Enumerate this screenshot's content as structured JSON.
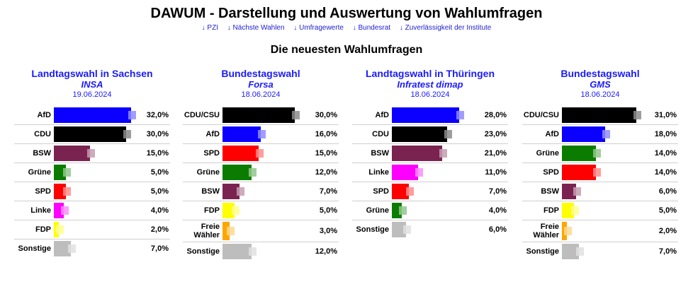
{
  "header": {
    "title": "DAWUM - Darstellung und Auswertung von Wahlumfragen",
    "nav": [
      "↓ PZI",
      "↓ Nächste Wahlen",
      "↓ Umfragewerte",
      "↓ Bundesrat",
      "↓ Zuverlässigkeit der Institute"
    ],
    "subtitle": "Die neuesten Wahlumfragen"
  },
  "colors": {
    "link": "#1a1aff",
    "parties": {
      "AfD": "#0b00ff",
      "CDU": "#000000",
      "CDU/CSU": "#000000",
      "BSW": "#7b2350",
      "Grüne": "#0a7d00",
      "SPD": "#ff0000",
      "Linke": "#ff00ff",
      "FDP": "#ffff00",
      "Freie Wähler": "#ffa500",
      "Sonstige": "#bdbdbd"
    }
  },
  "polls": [
    {
      "election": "Landtagswahl in Sachsen",
      "institute": "INSA",
      "date": "19.06.2024",
      "results": [
        {
          "party": "AfD",
          "value_text": "32,0%",
          "value": 32.0
        },
        {
          "party": "CDU",
          "value_text": "30,0%",
          "value": 30.0
        },
        {
          "party": "BSW",
          "value_text": "15,0%",
          "value": 15.0
        },
        {
          "party": "Grüne",
          "value_text": "5,0%",
          "value": 5.0
        },
        {
          "party": "SPD",
          "value_text": "5,0%",
          "value": 5.0
        },
        {
          "party": "Linke",
          "value_text": "4,0%",
          "value": 4.0
        },
        {
          "party": "FDP",
          "value_text": "2,0%",
          "value": 2.0
        },
        {
          "party": "Sonstige",
          "value_text": "7,0%",
          "value": 7.0
        }
      ]
    },
    {
      "election": "Bundestagswahl",
      "institute": "Forsa",
      "date": "18.06.2024",
      "results": [
        {
          "party": "CDU/CSU",
          "value_text": "30,0%",
          "value": 30.0
        },
        {
          "party": "AfD",
          "value_text": "16,0%",
          "value": 16.0
        },
        {
          "party": "SPD",
          "value_text": "15,0%",
          "value": 15.0
        },
        {
          "party": "Grüne",
          "value_text": "12,0%",
          "value": 12.0
        },
        {
          "party": "BSW",
          "value_text": "7,0%",
          "value": 7.0
        },
        {
          "party": "FDP",
          "value_text": "5,0%",
          "value": 5.0
        },
        {
          "party": "Freie Wähler",
          "value_text": "3,0%",
          "value": 3.0
        },
        {
          "party": "Sonstige",
          "value_text": "12,0%",
          "value": 12.0
        }
      ]
    },
    {
      "election": "Landtagswahl in Thüringen",
      "institute": "Infratest dimap",
      "date": "18.06.2024",
      "results": [
        {
          "party": "AfD",
          "value_text": "28,0%",
          "value": 28.0
        },
        {
          "party": "CDU",
          "value_text": "23,0%",
          "value": 23.0
        },
        {
          "party": "BSW",
          "value_text": "21,0%",
          "value": 21.0
        },
        {
          "party": "Linke",
          "value_text": "11,0%",
          "value": 11.0
        },
        {
          "party": "SPD",
          "value_text": "7,0%",
          "value": 7.0
        },
        {
          "party": "Grüne",
          "value_text": "4,0%",
          "value": 4.0
        },
        {
          "party": "Sonstige",
          "value_text": "6,0%",
          "value": 6.0
        }
      ]
    },
    {
      "election": "Bundestagswahl",
      "institute": "GMS",
      "date": "18.06.2024",
      "results": [
        {
          "party": "CDU/CSU",
          "value_text": "31,0%",
          "value": 31.0
        },
        {
          "party": "AfD",
          "value_text": "18,0%",
          "value": 18.0
        },
        {
          "party": "Grüne",
          "value_text": "14,0%",
          "value": 14.0
        },
        {
          "party": "SPD",
          "value_text": "14,0%",
          "value": 14.0
        },
        {
          "party": "BSW",
          "value_text": "6,0%",
          "value": 6.0
        },
        {
          "party": "FDP",
          "value_text": "5,0%",
          "value": 5.0
        },
        {
          "party": "Freie Wähler",
          "value_text": "2,0%",
          "value": 2.0
        },
        {
          "party": "Sonstige",
          "value_text": "7,0%",
          "value": 7.0
        }
      ]
    }
  ]
}
